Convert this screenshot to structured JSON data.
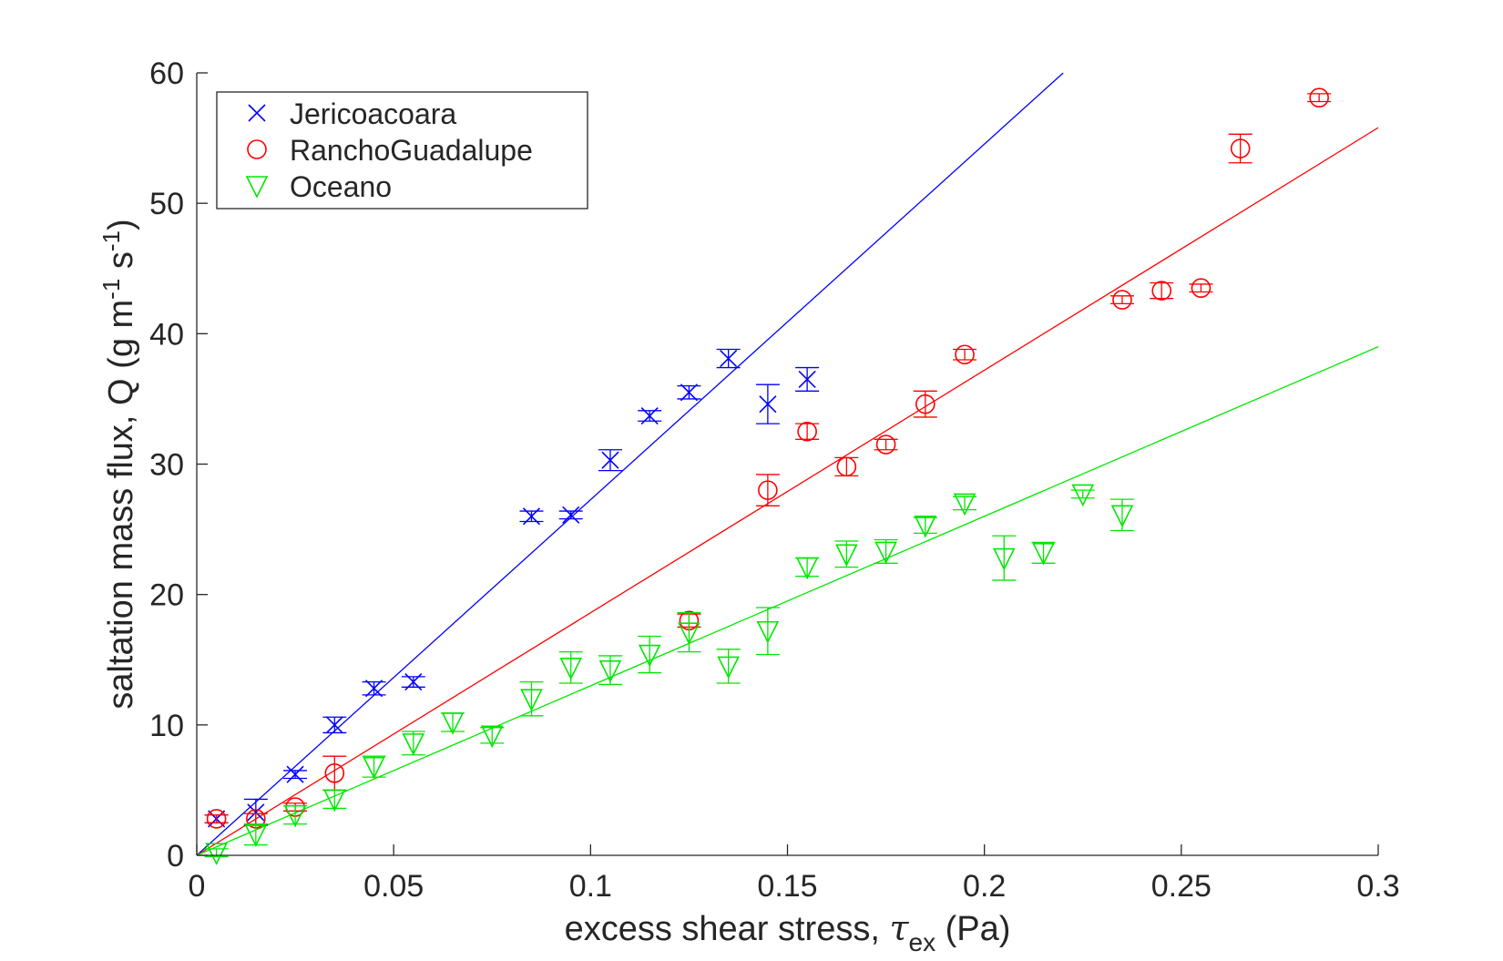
{
  "chart_data": {
    "type": "scatter",
    "xlabel_main": "excess shear stress, ",
    "xlabel_symbol": "τ",
    "xlabel_sub": "ex",
    "xlabel_unit": " (Pa)",
    "ylabel_main": "saltation mass flux, Q (g m",
    "ylabel_sup1": "-1",
    "ylabel_mid": " s",
    "ylabel_sup2": "-1",
    "ylabel_end": ")",
    "xlim": [
      0,
      0.3
    ],
    "ylim": [
      0,
      60
    ],
    "x_ticks": [
      0,
      0.05,
      0.1,
      0.15,
      0.2,
      0.25,
      0.3
    ],
    "x_tick_labels": [
      "0",
      "0.05",
      "0.1",
      "0.15",
      "0.2",
      "0.25",
      "0.3"
    ],
    "y_ticks": [
      0,
      10,
      20,
      30,
      40,
      50,
      60
    ],
    "y_tick_labels": [
      "0",
      "10",
      "20",
      "30",
      "40",
      "50",
      "60"
    ],
    "grid": false,
    "legend_position": "top-left",
    "series": [
      {
        "name": "Jericoacoara",
        "color": "#0000ff",
        "marker": "x",
        "x": [
          0.005,
          0.015,
          0.025,
          0.035,
          0.045,
          0.055,
          0.085,
          0.095,
          0.105,
          0.115,
          0.125,
          0.135,
          0.145,
          0.155
        ],
        "y": [
          2.8,
          3.3,
          6.2,
          10.0,
          12.8,
          13.3,
          26.0,
          26.1,
          30.3,
          33.7,
          35.5,
          38.1,
          34.6,
          36.5
        ],
        "err": [
          0.3,
          1.0,
          0.3,
          0.6,
          0.5,
          0.4,
          0.4,
          0.3,
          0.8,
          0.4,
          0.5,
          0.7,
          1.5,
          0.9
        ],
        "fit_slope": 272.7,
        "fit_xmax": 0.22
      },
      {
        "name": "RanchoGuadalupe",
        "color": "#ff0000",
        "marker": "circle",
        "x": [
          0.005,
          0.015,
          0.025,
          0.035,
          0.125,
          0.145,
          0.155,
          0.165,
          0.175,
          0.185,
          0.195,
          0.235,
          0.245,
          0.255,
          0.265,
          0.285
        ],
        "y": [
          2.8,
          2.8,
          3.7,
          6.3,
          18.0,
          28.0,
          32.5,
          29.8,
          31.5,
          34.6,
          38.4,
          42.6,
          43.3,
          43.5,
          54.2,
          58.1
        ],
        "err": [
          0.3,
          0.4,
          0.3,
          1.3,
          0.5,
          1.2,
          0.6,
          0.7,
          0.4,
          1.0,
          0.4,
          0.3,
          0.6,
          0.3,
          1.1,
          0.3
        ],
        "fit_slope": 186.0,
        "fit_xmax": 0.3
      },
      {
        "name": "Oceano",
        "color": "#00e800",
        "marker": "triangle-down",
        "x": [
          0.005,
          0.015,
          0.025,
          0.035,
          0.045,
          0.055,
          0.065,
          0.075,
          0.085,
          0.095,
          0.105,
          0.115,
          0.125,
          0.135,
          0.145,
          0.155,
          0.165,
          0.175,
          0.185,
          0.195,
          0.205,
          0.215,
          0.225,
          0.235
        ],
        "y": [
          0.2,
          1.6,
          3.1,
          4.3,
          6.8,
          8.6,
          10.2,
          9.2,
          12.0,
          14.4,
          14.2,
          15.4,
          17.1,
          14.5,
          17.2,
          22.1,
          23.1,
          23.3,
          25.3,
          27.0,
          22.8,
          23.2,
          27.7,
          26.1
        ],
        "err": [
          0.3,
          0.8,
          0.7,
          0.7,
          0.8,
          0.9,
          0.7,
          0.6,
          1.3,
          1.2,
          1.1,
          1.4,
          1.5,
          1.3,
          1.8,
          0.7,
          1.0,
          0.9,
          0.6,
          0.5,
          1.7,
          0.8,
          0.3,
          1.2
        ],
        "fit_slope": 130.0,
        "fit_xmax": 0.3
      }
    ]
  }
}
